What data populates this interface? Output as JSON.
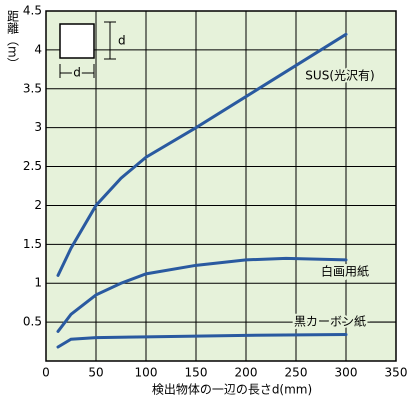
{
  "chart_data": {
    "type": "line",
    "y_label": "距離（m）",
    "x_label": "検出物体の一辺の長さd(mm)",
    "xlim": [
      0,
      350
    ],
    "xticks": [
      0,
      50,
      100,
      150,
      200,
      250,
      300,
      350
    ],
    "ylim": [
      0,
      4.5
    ],
    "yticks": [
      0.5,
      1,
      1.5,
      2,
      2.5,
      3,
      3.5,
      4,
      4.5
    ],
    "grid": true,
    "series": [
      {
        "name": "SUS(光沢有)",
        "color": "#2a5aa0",
        "x": [
          12,
          25,
          50,
          75,
          100,
          150,
          200,
          250,
          300
        ],
        "values": [
          1.1,
          1.45,
          2.0,
          2.35,
          2.62,
          3.0,
          3.4,
          3.8,
          4.2
        ]
      },
      {
        "name": "白画用紙",
        "color": "#2a5aa0",
        "x": [
          12,
          25,
          50,
          75,
          100,
          150,
          200,
          240,
          300
        ],
        "values": [
          0.38,
          0.6,
          0.85,
          1.0,
          1.12,
          1.23,
          1.3,
          1.32,
          1.3
        ]
      },
      {
        "name": "黒カーボン紙",
        "color": "#2a5aa0",
        "x": [
          12,
          25,
          50,
          100,
          200,
          300
        ],
        "values": [
          0.18,
          0.28,
          0.3,
          0.31,
          0.33,
          0.34
        ]
      }
    ],
    "inset": {
      "height_label": "d",
      "width_label": "d"
    }
  }
}
